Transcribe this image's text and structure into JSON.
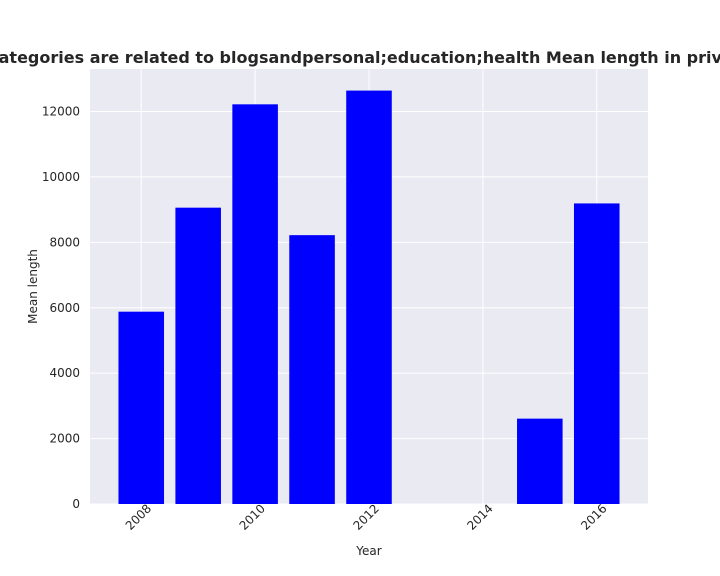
{
  "chart_data": {
    "type": "bar",
    "title": "Websites whose categories are related to blogsandpersonal;education;health Mean length in privacy policies by year",
    "xlabel": "Year",
    "ylabel": "Mean length",
    "x": [
      2008,
      2009,
      2010,
      2011,
      2012,
      2015,
      2016
    ],
    "values": [
      5880,
      9060,
      12220,
      8220,
      12640,
      2610,
      9190
    ],
    "xlim": [
      2007.1,
      2016.9
    ],
    "ylim": [
      0,
      13300
    ],
    "xticks": [
      2008,
      2010,
      2012,
      2014,
      2016
    ],
    "yticks": [
      0,
      2000,
      4000,
      6000,
      8000,
      10000,
      12000
    ],
    "grid": true,
    "colors": {
      "bar": "#0000ff",
      "plot_background": "#eaeaf2",
      "grid": "#ffffff"
    }
  }
}
